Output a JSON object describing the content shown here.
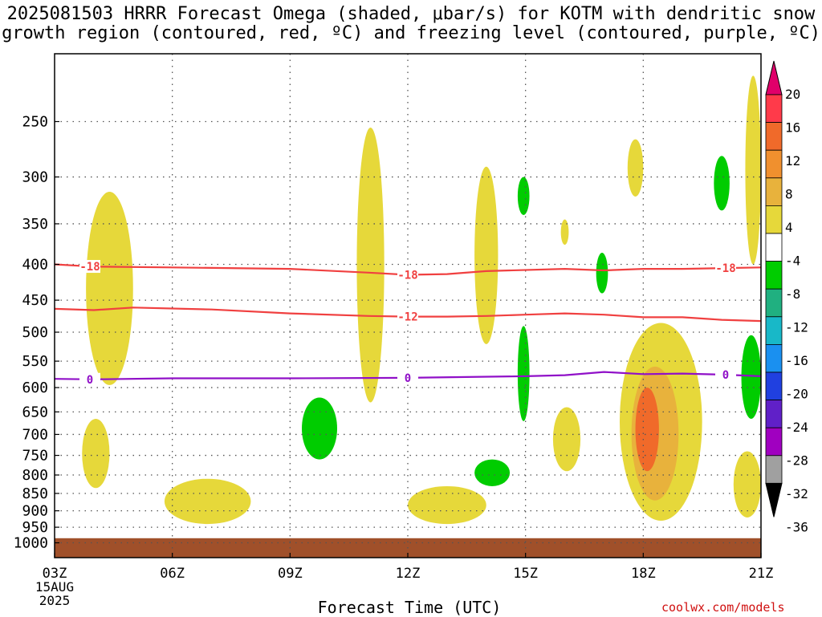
{
  "title": {
    "line1": "2025081503 HRRR Forecast Omega (shaded, μbar/s) for KOTM with dendritic snow",
    "line2": "growth region (contoured, red, ºC) and freezing level (contoured, purple, ºC)"
  },
  "credit": "coolwx.com/models",
  "chart_data": {
    "type": "heatmap",
    "xlabel": "Forecast Time (UTC)",
    "ylabel": "",
    "x_ticks": [
      "03Z",
      "06Z",
      "09Z",
      "12Z",
      "15Z",
      "18Z",
      "21Z"
    ],
    "x_hours": [
      3,
      6,
      9,
      12,
      15,
      18,
      21
    ],
    "x_start_sub": [
      "15AUG",
      "2025"
    ],
    "y_ticks": [
      250,
      300,
      350,
      400,
      450,
      500,
      550,
      600,
      650,
      700,
      750,
      800,
      850,
      900,
      950,
      1000
    ],
    "y_scale": "log-pressure (inverted)",
    "ylim": [
      1050,
      200
    ],
    "xlim": [
      3,
      21
    ],
    "grid": true,
    "colorbar": {
      "labels": [
        20,
        16,
        12,
        8,
        4,
        -4,
        -8,
        -12,
        -16,
        -20,
        -24,
        -28,
        -32,
        -36
      ],
      "colors": [
        "#ff3a4a",
        "#f06a2a",
        "#f0902e",
        "#e8b23c",
        "#e6d83a",
        "#ffffff",
        "#00cc00",
        "#20b080",
        "#18b8c8",
        "#1a90f0",
        "#2040e0",
        "#6020c8",
        "#a000c0",
        "#a0a0a0"
      ],
      "top_arrow_color": "#e0006a",
      "bottom_arrow_color": "#000000"
    },
    "contours": [
      {
        "name": "-18",
        "color": "#f04040",
        "labels": [
          "-18",
          "-18",
          "-18"
        ],
        "points": [
          [
            3,
            400
          ],
          [
            4,
            403
          ],
          [
            6,
            404
          ],
          [
            9,
            406
          ],
          [
            11,
            411
          ],
          [
            12,
            414
          ],
          [
            13,
            413
          ],
          [
            14,
            409
          ],
          [
            16,
            406
          ],
          [
            17,
            408
          ],
          [
            18,
            406
          ],
          [
            19,
            406
          ],
          [
            21,
            404
          ]
        ]
      },
      {
        "name": "-12",
        "color": "#f04040",
        "labels": [
          "-12"
        ],
        "points": [
          [
            3,
            463
          ],
          [
            4,
            465
          ],
          [
            5,
            461
          ],
          [
            7,
            464
          ],
          [
            9,
            470
          ],
          [
            11,
            474
          ],
          [
            12,
            475
          ],
          [
            13,
            475
          ],
          [
            14,
            474
          ],
          [
            15,
            472
          ],
          [
            16,
            470
          ],
          [
            17,
            472
          ],
          [
            18,
            476
          ],
          [
            19,
            476
          ],
          [
            20,
            480
          ],
          [
            21,
            482
          ]
        ]
      },
      {
        "name": "0",
        "color": "#9010c8",
        "labels": [
          "0",
          "0",
          "0"
        ],
        "points": [
          [
            3,
            583
          ],
          [
            4,
            584
          ],
          [
            6,
            582
          ],
          [
            9,
            582
          ],
          [
            12,
            581
          ],
          [
            15,
            578
          ],
          [
            16,
            576
          ],
          [
            17,
            570
          ],
          [
            18,
            574
          ],
          [
            19,
            573
          ],
          [
            20,
            575
          ],
          [
            21,
            578
          ]
        ]
      }
    ],
    "shaded_regions": [
      {
        "value": 4,
        "label": "upward_weak",
        "hours": [
          3.8,
          5.0
        ],
        "pressure": [
          315,
          595
        ]
      },
      {
        "value": 4,
        "label": "upward_weak",
        "hours": [
          3.7,
          4.4
        ],
        "pressure": [
          665,
          835
        ]
      },
      {
        "value": 4,
        "label": "upward_weak",
        "hours": [
          5.8,
          8.0
        ],
        "pressure": [
          810,
          940
        ]
      },
      {
        "value": 4,
        "label": "upward_weak",
        "hours": [
          10.7,
          11.4
        ],
        "pressure": [
          255,
          630
        ]
      },
      {
        "value": 4,
        "label": "upward_weak",
        "hours": [
          12.0,
          14.0
        ],
        "pressure": [
          830,
          940
        ]
      },
      {
        "value": 4,
        "label": "upward_weak",
        "hours": [
          13.7,
          14.3
        ],
        "pressure": [
          290,
          520
        ]
      },
      {
        "value": 4,
        "label": "upward_weak",
        "hours": [
          15.9,
          16.1
        ],
        "pressure": [
          345,
          375
        ]
      },
      {
        "value": 4,
        "label": "upward_weak",
        "hours": [
          15.7,
          16.4
        ],
        "pressure": [
          640,
          790
        ]
      },
      {
        "value": 4,
        "label": "upward_weak",
        "hours": [
          17.6,
          18.0
        ],
        "pressure": [
          265,
          320
        ]
      },
      {
        "value": 4,
        "label": "upward_weak",
        "hours": [
          17.4,
          19.5
        ],
        "pressure": [
          485,
          930
        ]
      },
      {
        "value": 8,
        "label": "upward_moderate",
        "hours": [
          17.7,
          18.9
        ],
        "pressure": [
          560,
          870
        ]
      },
      {
        "value": 12,
        "label": "upward_strong",
        "hours": [
          17.8,
          18.4
        ],
        "pressure": [
          600,
          790
        ]
      },
      {
        "value": 4,
        "label": "upward_weak",
        "hours": [
          20.6,
          21.0
        ],
        "pressure": [
          215,
          400
        ]
      },
      {
        "value": 4,
        "label": "upward_weak",
        "hours": [
          20.3,
          21.0
        ],
        "pressure": [
          740,
          920
        ]
      },
      {
        "value": -4,
        "label": "downward_weak",
        "hours": [
          9.3,
          10.2
        ],
        "pressure": [
          620,
          760
        ]
      },
      {
        "value": -4,
        "label": "downward_weak",
        "hours": [
          14.8,
          15.1
        ],
        "pressure": [
          300,
          340
        ]
      },
      {
        "value": -4,
        "label": "downward_weak",
        "hours": [
          14.8,
          15.1
        ],
        "pressure": [
          490,
          670
        ]
      },
      {
        "value": -4,
        "label": "downward_weak",
        "hours": [
          13.7,
          14.6
        ],
        "pressure": [
          760,
          830
        ]
      },
      {
        "value": -4,
        "label": "downward_weak",
        "hours": [
          16.8,
          17.1
        ],
        "pressure": [
          385,
          440
        ]
      },
      {
        "value": -4,
        "label": "downward_weak",
        "hours": [
          19.8,
          20.2
        ],
        "pressure": [
          280,
          335
        ]
      },
      {
        "value": -4,
        "label": "downward_weak",
        "hours": [
          20.5,
          21.0
        ],
        "pressure": [
          505,
          665
        ]
      }
    ],
    "terrain": {
      "color": "#a0502a",
      "pressure_top": 985
    }
  }
}
